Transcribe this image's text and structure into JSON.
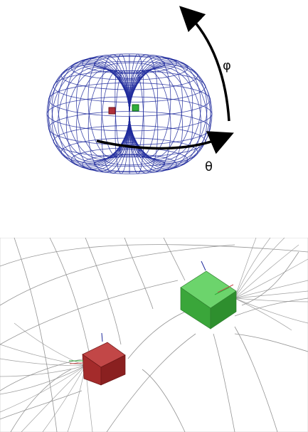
{
  "top_panel": {
    "labels": {
      "phi": "φ",
      "theta": "θ"
    },
    "colors": {
      "wireframe": "#1f2a9c",
      "arrow": "#000000",
      "cube_left": "#b0313a",
      "cube_right": "#2fae3a"
    }
  },
  "bottom_panel": {
    "colors": {
      "grid": "#8a8a8a",
      "cube_red": "#a42b2b",
      "cube_green": "#3aa63a"
    }
  }
}
